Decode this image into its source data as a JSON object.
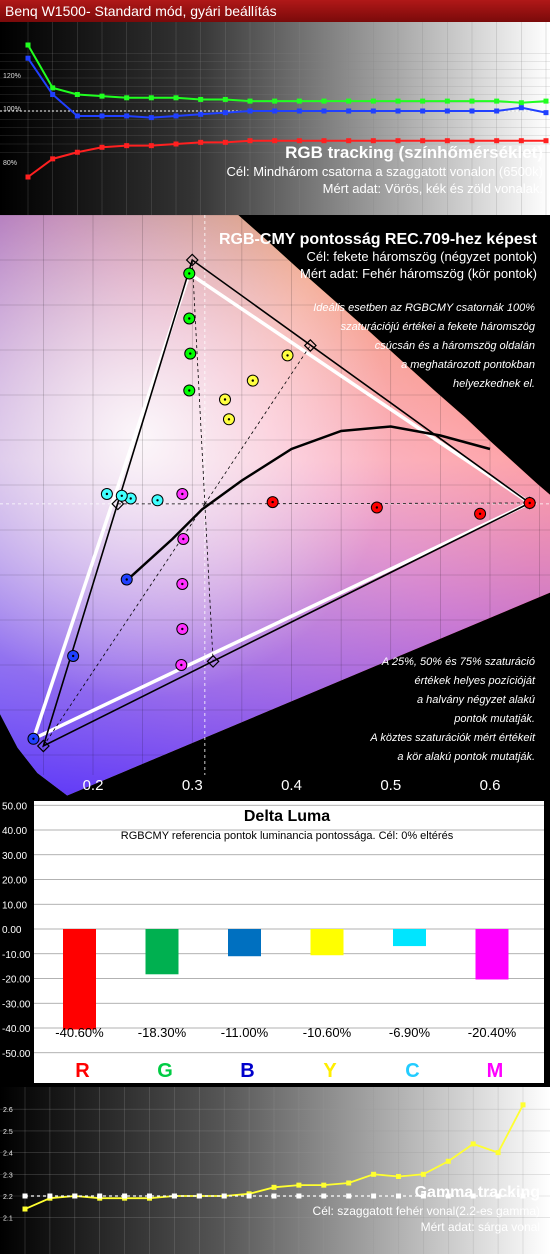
{
  "header": {
    "title": "Benq W1500-  Standard mód, gyári beállítás"
  },
  "rgb_panel": {
    "title": "RGB tracking (színhőmérséklet)",
    "line1": "Cél: Mindhárom csatorna a szaggatott vonalon (6500k)",
    "line2": "Mért adat: Vörös, kék és zöld vonalak.",
    "ticks": [
      "120%",
      "100%",
      "80%"
    ]
  },
  "cie_panel": {
    "title": "RGB-CMY pontosság REC.709-hez képest",
    "line1": "Cél: fekete háromszög (négyzet pontok)",
    "line2": "Mért adat: Fehér háromszög (kör pontok)",
    "note1": [
      "Ideális esetben az RGBCMY csatornák 100%",
      "szaturációjú értékei a fekete háromszög",
      "csúcsán  és a háromszög oldalán",
      "a meghatározott pontokban",
      "helyezkednek el."
    ],
    "note2": [
      "A 25%, 50% és 75% szaturáció",
      "értékek helyes pozícióját",
      "a halvány négyzet alakú",
      "pontok mutatják.",
      "A köztes szaturációk mért értékeit",
      "a kör alakú pontok mutatják."
    ],
    "xticks": [
      "0.2",
      "0.3",
      "0.4",
      "0.5",
      "0.6"
    ]
  },
  "luma_panel": {
    "title": "Delta Luma",
    "subtitle": "RGBCMY referencia pontok luminancia pontossága. Cél: 0% eltérés",
    "yticks": [
      "50.00",
      "40.00",
      "30.00",
      "20.00",
      "10.00",
      "0.00",
      "-10.00",
      "-20.00",
      "-30.00",
      "-40.00",
      "-50.00"
    ]
  },
  "gamma_panel": {
    "title": "Gamma tracking",
    "line1": "Cél: szaggatott fehér vonal(2.2-es gamma)",
    "line2": "Mért adat: sárga vonal",
    "yticks": [
      "2.6",
      "2.5",
      "2.4",
      "2.3",
      "2.2",
      "2.1"
    ]
  },
  "chart_data": [
    {
      "type": "line",
      "title": "RGB tracking (színhőmérséklet)",
      "ylim": [
        70,
        135
      ],
      "x": [
        0,
        1,
        2,
        3,
        4,
        5,
        6,
        7,
        8,
        9,
        10,
        11,
        12,
        13,
        14,
        15,
        16,
        17,
        18,
        19,
        20,
        21
      ],
      "series": [
        {
          "name": "Vörös",
          "color": "#ff2020",
          "values": [
            60,
            71,
            75,
            78,
            79,
            79,
            80,
            81,
            81,
            82,
            82,
            82,
            82,
            82,
            82,
            82,
            82,
            82,
            82,
            82,
            82,
            82
          ]
        },
        {
          "name": "Zöld",
          "color": "#20ff20",
          "values": [
            140,
            114,
            110,
            109,
            108,
            108,
            108,
            107,
            107,
            106,
            106,
            106,
            106,
            106,
            106,
            106,
            106,
            106,
            106,
            106,
            105,
            106
          ]
        },
        {
          "name": "Kék",
          "color": "#2040ff",
          "values": [
            132,
            110,
            97,
            97,
            97,
            96,
            97,
            98,
            99,
            100,
            100,
            100,
            100,
            100,
            100,
            100,
            100,
            100,
            100,
            100,
            102,
            99
          ]
        }
      ]
    },
    {
      "type": "scatter",
      "title": "RGB-CMY pontosság REC.709-hez képest",
      "xlim": [
        0.12,
        0.66
      ],
      "ylim": [
        0.0,
        0.88
      ],
      "xticks": [
        0.2,
        0.3,
        0.4,
        0.5,
        0.6
      ],
      "target_triangle": [
        [
          0.64,
          0.33
        ],
        [
          0.3,
          0.6
        ],
        [
          0.15,
          0.06
        ]
      ],
      "measured_triangle": [
        [
          0.64,
          0.33
        ],
        [
          0.297,
          0.585
        ],
        [
          0.14,
          0.068
        ]
      ],
      "white_point": [
        0.3127,
        0.329
      ],
      "measured_points": [
        {
          "color": "#ff0000",
          "pts": [
            [
              0.381,
              0.331
            ],
            [
              0.486,
              0.325
            ],
            [
              0.59,
              0.318
            ],
            [
              0.64,
              0.33
            ]
          ]
        },
        {
          "color": "#00ff00",
          "pts": [
            [
              0.297,
              0.585
            ],
            [
              0.297,
              0.455
            ],
            [
              0.298,
              0.496
            ],
            [
              0.297,
              0.535
            ]
          ]
        },
        {
          "color": "#2040ff",
          "pts": [
            [
              0.14,
              0.068
            ],
            [
              0.18,
              0.16
            ],
            [
              0.234,
              0.245
            ]
          ]
        },
        {
          "color": "#ffff40",
          "pts": [
            [
              0.396,
              0.494
            ],
            [
              0.333,
              0.445
            ],
            [
              0.337,
              0.423
            ],
            [
              0.361,
              0.466
            ]
          ]
        },
        {
          "color": "#40ffff",
          "pts": [
            [
              0.214,
              0.34
            ],
            [
              0.238,
              0.335
            ],
            [
              0.265,
              0.333
            ],
            [
              0.229,
              0.338
            ]
          ]
        },
        {
          "color": "#ff30ff",
          "pts": [
            [
              0.29,
              0.34
            ],
            [
              0.291,
              0.29
            ],
            [
              0.29,
              0.24
            ],
            [
              0.29,
              0.19
            ],
            [
              0.289,
              0.15
            ]
          ]
        }
      ],
      "target_points": [
        [
          0.64,
          0.33
        ],
        [
          0.3,
          0.6
        ],
        [
          0.15,
          0.06
        ],
        [
          0.419,
          0.505
        ],
        [
          0.225,
          0.329
        ],
        [
          0.321,
          0.154
        ]
      ],
      "planck_curve": [
        [
          0.23,
          0.24
        ],
        [
          0.28,
          0.29
        ],
        [
          0.31,
          0.323
        ],
        [
          0.35,
          0.355
        ],
        [
          0.4,
          0.39
        ],
        [
          0.45,
          0.41
        ],
        [
          0.5,
          0.415
        ],
        [
          0.55,
          0.405
        ],
        [
          0.6,
          0.39
        ]
      ]
    },
    {
      "type": "bar",
      "title": "Delta Luma",
      "categories": [
        "R",
        "G",
        "B",
        "Y",
        "C",
        "M"
      ],
      "values": [
        -40.6,
        -18.3,
        -11.0,
        -10.6,
        -6.9,
        -20.4
      ],
      "labels": [
        "-40.60%",
        "-18.30%",
        "-11.00%",
        "-10.60%",
        "-6.90%",
        "-20.40%"
      ],
      "colors": [
        "#ff0000",
        "#00b050",
        "#0070c0",
        "#ffff00",
        "#00e5ff",
        "#ff00ff"
      ],
      "ylim": [
        -50,
        50
      ]
    },
    {
      "type": "line",
      "title": "Gamma tracking",
      "ylim": [
        2.05,
        2.63
      ],
      "x": [
        0,
        1,
        2,
        3,
        4,
        5,
        6,
        7,
        8,
        9,
        10,
        11,
        12,
        13,
        14,
        15,
        16,
        17,
        18,
        19,
        20
      ],
      "series": [
        {
          "name": "sárga vonal",
          "color": "#ffff30",
          "values": [
            2.14,
            2.19,
            2.2,
            2.19,
            2.19,
            2.19,
            2.2,
            2.2,
            2.2,
            2.21,
            2.24,
            2.25,
            2.25,
            2.26,
            2.3,
            2.29,
            2.3,
            2.36,
            2.44,
            2.4,
            2.62
          ]
        },
        {
          "name": "2.2-es gamma",
          "color": "#ffffff",
          "values": [
            2.2,
            2.2,
            2.2,
            2.2,
            2.2,
            2.2,
            2.2,
            2.2,
            2.2,
            2.2,
            2.2,
            2.2,
            2.2,
            2.2,
            2.2,
            2.2,
            2.2,
            2.2,
            2.2,
            2.2,
            2.2
          ]
        }
      ]
    }
  ]
}
